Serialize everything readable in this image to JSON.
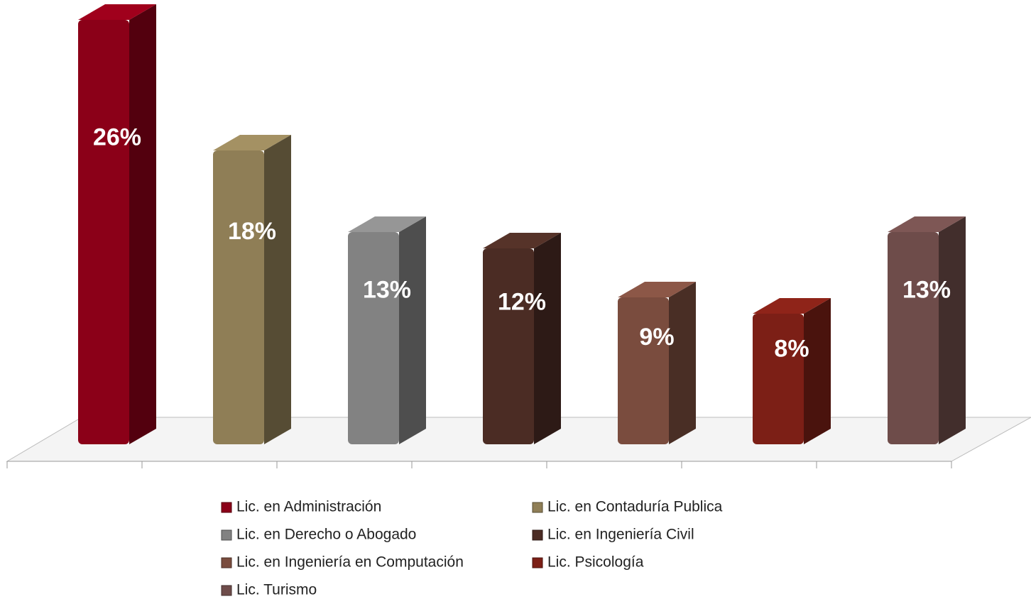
{
  "chart_data": {
    "type": "bar",
    "series": [
      {
        "name": "Lic. en Administración",
        "color": "#8b0018",
        "values": [
          26
        ],
        "value_labels": [
          "26%"
        ]
      },
      {
        "name": "Lic. en Contaduría Publica",
        "color": "#8f7e56",
        "values": [
          18
        ],
        "value_labels": [
          "18%"
        ]
      },
      {
        "name": "Lic. en Derecho o Abogado",
        "color": "#828282",
        "values": [
          13
        ],
        "value_labels": [
          "13%"
        ]
      },
      {
        "name": "Lic. en Ingeniería Civil",
        "color": "#4b2c24",
        "values": [
          12
        ],
        "value_labels": [
          "12%"
        ]
      },
      {
        "name": "Lic. en Ingeniería en Computación",
        "color": "#7a4c3e",
        "values": [
          9
        ],
        "value_labels": [
          "9%"
        ]
      },
      {
        "name": "Lic. Psicología",
        "color": "#7c1f16",
        "values": [
          8
        ],
        "value_labels": [
          "8%"
        ]
      },
      {
        "name": "Lic. Turismo",
        "color": "#6e4c4a",
        "values": [
          13
        ],
        "value_labels": [
          "13%"
        ]
      }
    ]
  }
}
